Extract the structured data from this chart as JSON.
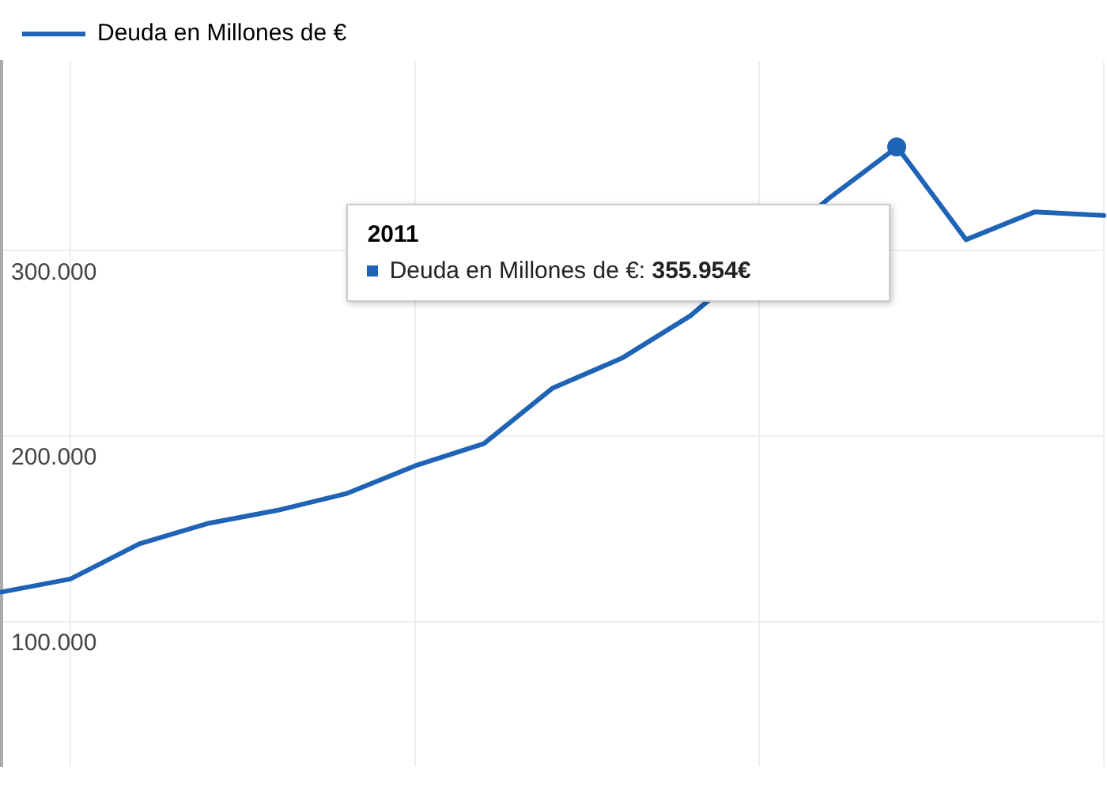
{
  "chart_data": {
    "type": "line",
    "categories": [
      null,
      null,
      null,
      null,
      null,
      null,
      null,
      null,
      null,
      null,
      null,
      null,
      null,
      null,
      null,
      null,
      null
    ],
    "series": [
      {
        "name": "Deuda en Millones de €",
        "color": "#1e63b5",
        "values": [
          116000,
          123000,
          142000,
          153000,
          160000,
          169000,
          184000,
          196000,
          226000,
          242000,
          265000,
          null,
          328000,
          355954,
          306000,
          321000,
          319000
        ]
      }
    ],
    "ylim": [
      22000,
      402000
    ],
    "yticks": [
      {
        "value": 100000,
        "label": "100.000"
      },
      {
        "value": 200000,
        "label": "200.000"
      },
      {
        "value": 300000,
        "label": "300.000"
      }
    ],
    "grid": true,
    "legend": "top left",
    "tick_labels": "y",
    "marker": "none",
    "line_style": "solid",
    "annotations": [
      "2011",
      "Deuda en Millones de €: 355.954€"
    ]
  }
}
